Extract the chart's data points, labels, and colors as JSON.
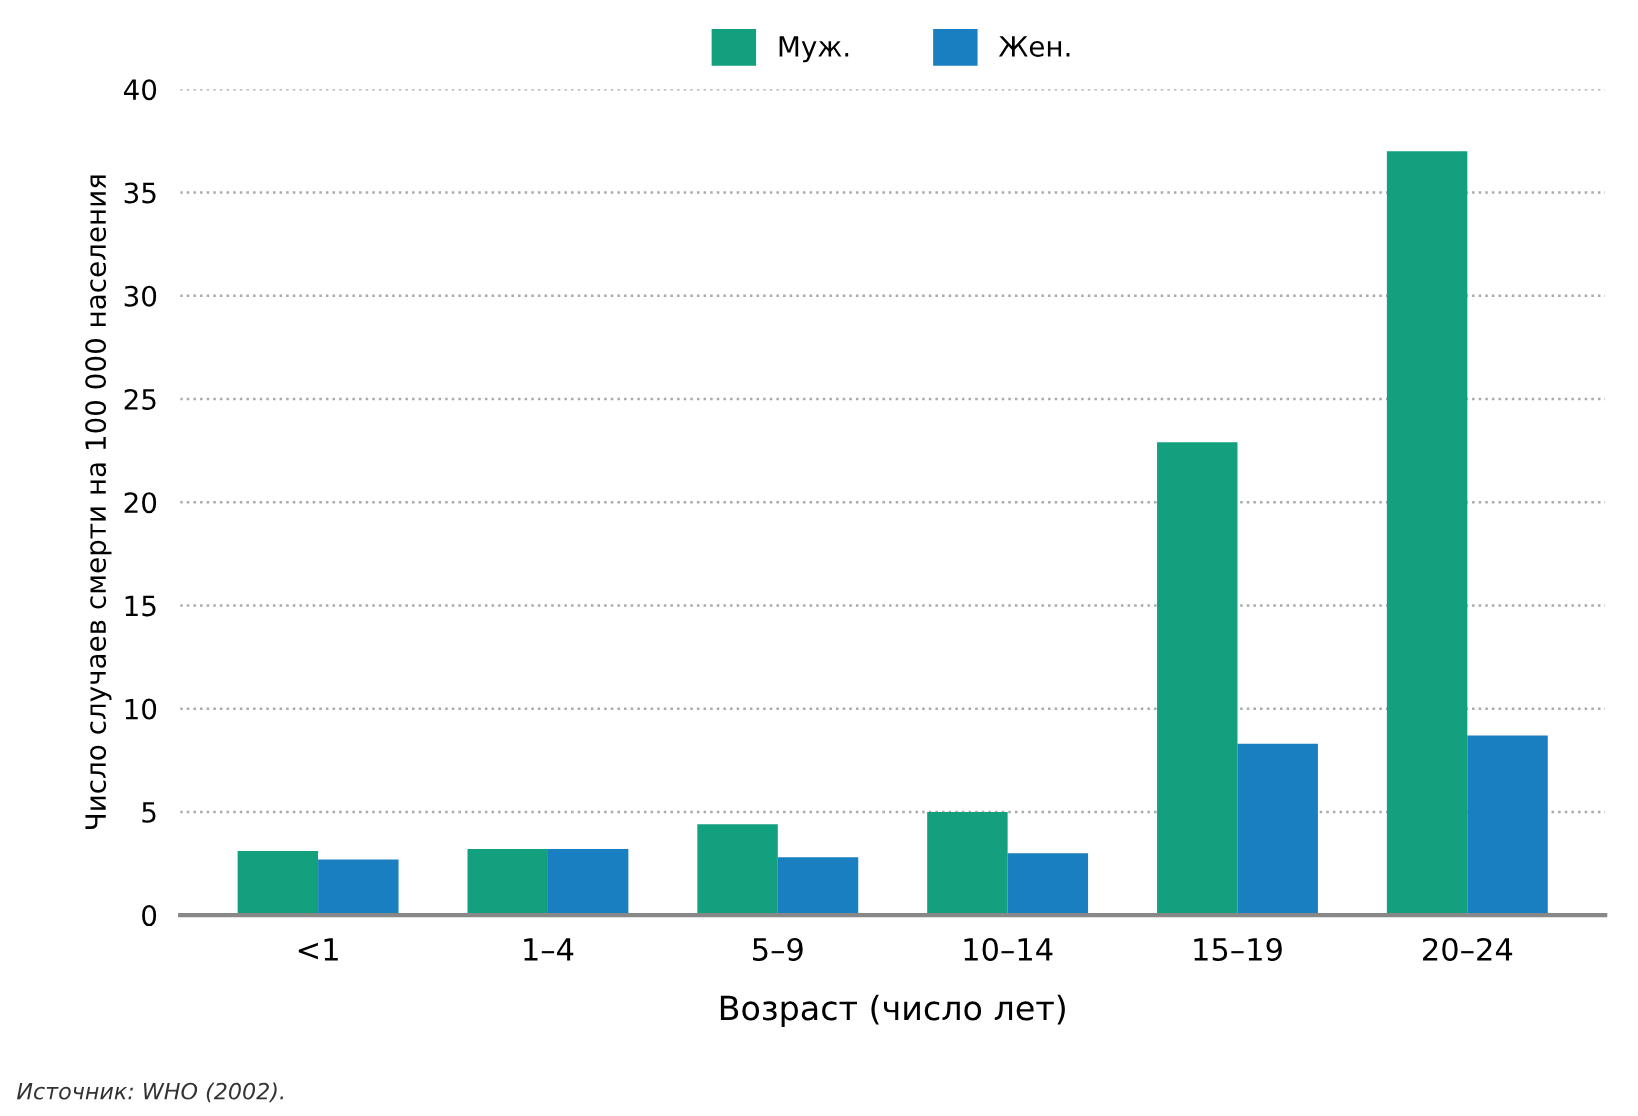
{
  "chart_data": {
    "type": "bar",
    "xlabel": "Возраст (число лет)",
    "ylabel": "Число случаев смерти на 100 000 населения",
    "categories": [
      "<1",
      "1–4",
      "5–9",
      "10–14",
      "15–19",
      "20–24"
    ],
    "series": [
      {
        "name": "Муж.",
        "color": "#12a07e",
        "values": [
          3.1,
          3.2,
          4.4,
          5.0,
          22.9,
          37.0
        ]
      },
      {
        "name": "Жен.",
        "color": "#1a7fc0",
        "values": [
          2.7,
          3.2,
          2.8,
          3.0,
          8.3,
          8.7
        ]
      }
    ],
    "ylim": [
      0,
      40
    ],
    "yticks": [
      0,
      5,
      10,
      15,
      20,
      25,
      30,
      35,
      40
    ],
    "grid": "y",
    "legend": "top",
    "annotations": [
      "Источник: WHO (2002)."
    ]
  }
}
